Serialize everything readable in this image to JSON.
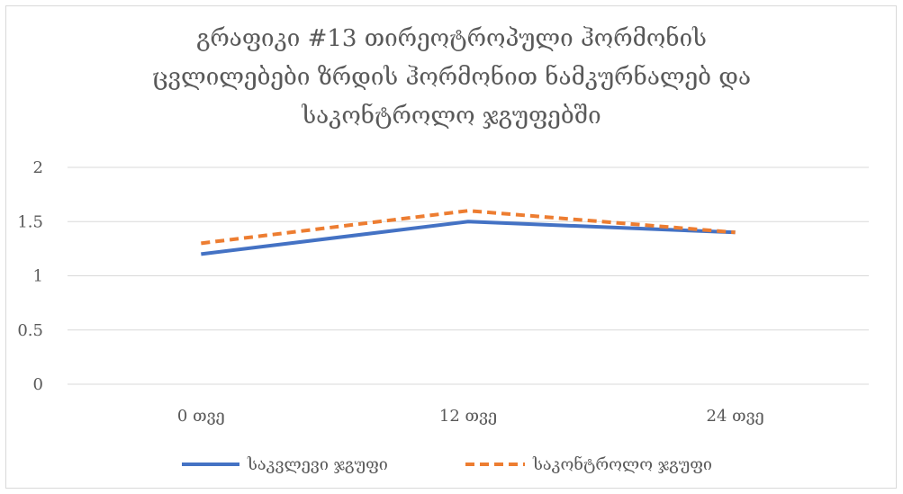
{
  "chart_data": {
    "type": "line",
    "title_lines": [
      "გრაფიკი #13  თირეოტროპული ჰორმონის",
      "ცვლილებები ზრდის ჰორმონით ნამკურნალებ  და",
      "საკონტროლო ჯგუფებში"
    ],
    "categories": [
      "0 თვე",
      "12 თვე",
      "24 თვე"
    ],
    "ylim": [
      0,
      2
    ],
    "yticks": [
      "0",
      "0.5",
      "1",
      "1.5",
      "2"
    ],
    "ytick_values": [
      0,
      0.5,
      1,
      1.5,
      2
    ],
    "grid": true,
    "legend_position": "bottom",
    "series": [
      {
        "name": "საკვლევი ჯგუფი",
        "values": [
          1.2,
          1.5,
          1.4
        ],
        "color": "#4472c4",
        "style": "solid"
      },
      {
        "name": "საკონტროლო ჯგუფი",
        "values": [
          1.3,
          1.6,
          1.4
        ],
        "color": "#ed7d31",
        "style": "dashed"
      }
    ]
  }
}
